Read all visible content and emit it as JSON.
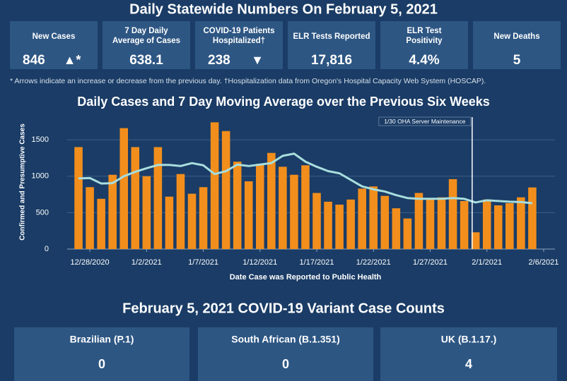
{
  "header": {
    "title": "Daily Statewide Numbers On February 5, 2021"
  },
  "cards": [
    {
      "label": "New Cases",
      "value": "846",
      "arrow": "▲*"
    },
    {
      "label": "7 Day Daily Average of Cases",
      "value": "638.1"
    },
    {
      "label": "COVID-19 Patients Hospitalized†",
      "value": "238",
      "arrow": "▼"
    },
    {
      "label": "ELR Tests Reported",
      "value": "17,816"
    },
    {
      "label": "ELR Test Positivity",
      "value": "4.4%"
    },
    {
      "label": "New Deaths",
      "value": "5"
    }
  ],
  "note": "* Arrows indicate an increase or decrease from the previous day. †Hospitalization data from Oregon's Hospital Capacity Web System (HOSCAP).",
  "chart_data": {
    "type": "bar",
    "title": "Daily Cases and 7 Day Moving Average over the Previous Six Weeks",
    "x_label": "Date Case was Reported to Public Health",
    "y_label": "Confirmed and Presumptive Cases",
    "x": [
      "12/27/2020",
      "12/28/2020",
      "12/29/2020",
      "12/30/2020",
      "12/31/2020",
      "1/1/2021",
      "1/2/2021",
      "1/3/2021",
      "1/4/2021",
      "1/5/2021",
      "1/6/2021",
      "1/7/2021",
      "1/8/2021",
      "1/9/2021",
      "1/10/2021",
      "1/11/2021",
      "1/12/2021",
      "1/13/2021",
      "1/14/2021",
      "1/15/2021",
      "1/16/2021",
      "1/17/2021",
      "1/18/2021",
      "1/19/2021",
      "1/20/2021",
      "1/21/2021",
      "1/22/2021",
      "1/23/2021",
      "1/24/2021",
      "1/25/2021",
      "1/26/2021",
      "1/27/2021",
      "1/28/2021",
      "1/29/2021",
      "1/30/2021",
      "1/31/2021",
      "2/1/2021",
      "2/2/2021",
      "2/3/2021",
      "2/4/2021",
      "2/5/2021"
    ],
    "series": [
      {
        "type": "bar",
        "color": "#f28e1c",
        "values": [
          1400,
          850,
          690,
          1020,
          1660,
          1400,
          1000,
          1400,
          720,
          1030,
          760,
          850,
          1740,
          1620,
          1200,
          930,
          1170,
          1320,
          1130,
          1020,
          1150,
          770,
          650,
          610,
          680,
          830,
          860,
          730,
          560,
          420,
          770,
          690,
          710,
          960,
          660,
          230,
          680,
          600,
          630,
          710,
          846
        ]
      },
      {
        "type": "line",
        "color": "#a8dede",
        "values": [
          970,
          975,
          900,
          905,
          1000,
          1060,
          1110,
          1155,
          1155,
          1140,
          1180,
          1150,
          1030,
          1070,
          1160,
          1140,
          1160,
          1180,
          1280,
          1310,
          1200,
          1130,
          1070,
          1040,
          950,
          860,
          820,
          790,
          740,
          700,
          690,
          690,
          690,
          700,
          690,
          640,
          670,
          660,
          650,
          645,
          630
        ]
      }
    ],
    "xlim": [
      "12/26/2020",
      "2/7/2021"
    ],
    "xticks": [
      "12/28/2020",
      "1/2/2021",
      "1/7/2021",
      "1/12/2021",
      "1/17/2021",
      "1/22/2021",
      "1/27/2021",
      "2/1/2021",
      "2/6/2021"
    ],
    "ylim": [
      0,
      1850
    ],
    "yticks": [
      0,
      500,
      1000,
      1500
    ],
    "grid": true,
    "annotation": {
      "text": "1/30 OHA Server Maintenance",
      "x": "1/31/2021"
    }
  },
  "variants": {
    "title": "February 5, 2021 COVID-19 Variant Case Counts",
    "cards": [
      {
        "label": "Brazilian (P.1)",
        "value": "0"
      },
      {
        "label": "South African (B.1.351)",
        "value": "0"
      },
      {
        "label": "UK (B.1.17.)",
        "value": "4"
      }
    ]
  }
}
